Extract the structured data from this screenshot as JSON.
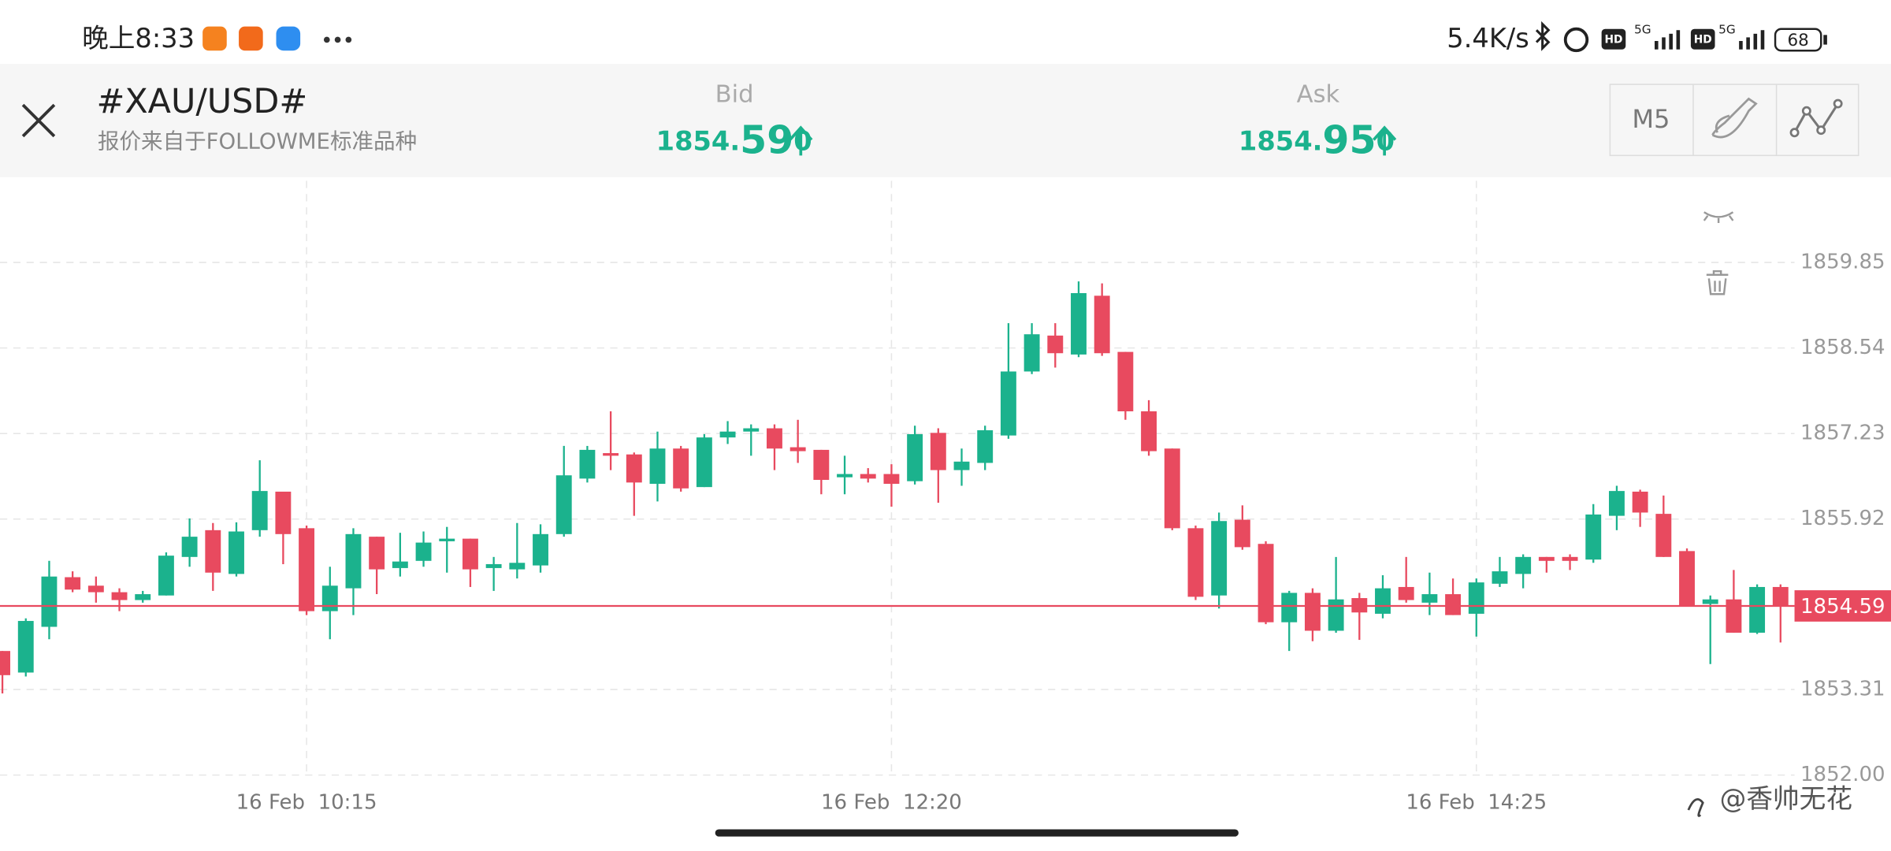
{
  "status_bar": {
    "time": "晚上8:33",
    "speed": "5.4K/s",
    "battery": "68",
    "network": [
      "5G",
      "5G"
    ],
    "hd": [
      "HD",
      "HD"
    ]
  },
  "header": {
    "symbol": "#XAU/USD#",
    "source": "报价来自于FOLLOWME标准品种",
    "bid": {
      "label": "Bid",
      "price": [
        "1854.",
        "59",
        "0"
      ]
    },
    "ask": {
      "label": "Ask",
      "price": [
        "1854.",
        "95",
        "0"
      ]
    },
    "timeframe": "M5"
  },
  "watermark": "@香帅无花",
  "chart_data": {
    "type": "candlestick",
    "up_color": "#1bb28d",
    "down_color": "#e84a5f",
    "grid": true,
    "categories": [
      null,
      null,
      null,
      null,
      null,
      null,
      null,
      null,
      null,
      null,
      null,
      null,
      null,
      "16 Feb  10:15",
      null,
      null,
      null,
      null,
      null,
      null,
      null,
      null,
      null,
      null,
      null,
      null,
      null,
      null,
      null,
      null,
      null,
      null,
      null,
      null,
      null,
      null,
      null,
      null,
      "16 Feb  12:20",
      null,
      null,
      null,
      null,
      null,
      null,
      null,
      null,
      null,
      null,
      null,
      null,
      null,
      null,
      null,
      null,
      null,
      null,
      null,
      null,
      null,
      null,
      null,
      null,
      "16 Feb  14:25",
      null,
      null,
      null,
      null,
      null,
      null,
      null,
      null,
      null,
      null,
      null,
      null,
      null
    ],
    "open": [
      1853.9,
      1853.57,
      1854.27,
      1855.03,
      1854.9,
      1854.8,
      1854.68,
      1854.75,
      1855.34,
      1855.75,
      1855.08,
      1855.75,
      1856.34,
      1855.78,
      1854.51,
      1854.86,
      1855.65,
      1855.17,
      1855.28,
      1855.58,
      1855.62,
      1855.17,
      1855.15,
      1855.21,
      1855.69,
      1856.54,
      1856.93,
      1856.91,
      1856.46,
      1857.0,
      1856.41,
      1857.17,
      1857.26,
      1857.31,
      1857.02,
      1856.98,
      1856.56,
      1856.61,
      1856.61,
      1856.5,
      1857.24,
      1856.67,
      1856.78,
      1857.2,
      1858.18,
      1858.73,
      1858.44,
      1859.34,
      1858.48,
      1857.57,
      1857.0,
      1855.78,
      1854.75,
      1855.91,
      1855.54,
      1854.34,
      1854.79,
      1854.21,
      1854.71,
      1854.47,
      1854.88,
      1854.64,
      1854.77,
      1854.47,
      1854.93,
      1855.08,
      1855.34,
      1855.34,
      1855.3,
      1855.97,
      1856.34,
      1856.0,
      1855.43,
      1854.62,
      1854.69,
      1854.18,
      1854.88
    ],
    "high": [
      1853.9,
      1854.4,
      1855.28,
      1855.12,
      1855.04,
      1854.86,
      1854.82,
      1855.41,
      1855.93,
      1855.86,
      1855.87,
      1856.82,
      1856.34,
      1855.82,
      1855.19,
      1855.78,
      1855.65,
      1855.71,
      1855.73,
      1855.8,
      1855.62,
      1855.34,
      1855.86,
      1855.84,
      1857.04,
      1857.04,
      1857.57,
      1856.94,
      1857.26,
      1857.04,
      1857.22,
      1857.42,
      1857.37,
      1857.37,
      1857.44,
      1856.98,
      1856.89,
      1856.7,
      1856.76,
      1857.35,
      1857.31,
      1857.0,
      1857.35,
      1858.92,
      1858.92,
      1858.92,
      1859.56,
      1859.53,
      1858.48,
      1857.74,
      1857.0,
      1855.82,
      1856.02,
      1856.13,
      1855.58,
      1854.82,
      1854.86,
      1855.34,
      1854.79,
      1855.06,
      1855.34,
      1855.1,
      1855.01,
      1855.01,
      1855.34,
      1855.38,
      1855.34,
      1855.38,
      1856.15,
      1856.43,
      1856.37,
      1856.28,
      1855.47,
      1854.75,
      1855.14,
      1854.92,
      1854.92
    ],
    "low": [
      1853.25,
      1853.51,
      1854.08,
      1854.8,
      1854.64,
      1854.51,
      1854.64,
      1854.75,
      1855.19,
      1854.82,
      1855.04,
      1855.65,
      1855.23,
      1854.45,
      1854.08,
      1854.45,
      1854.77,
      1855.04,
      1855.19,
      1855.1,
      1854.88,
      1854.82,
      1855.01,
      1855.1,
      1855.65,
      1856.48,
      1856.67,
      1855.97,
      1856.19,
      1856.34,
      1856.41,
      1857.07,
      1856.89,
      1856.67,
      1856.78,
      1856.3,
      1856.3,
      1856.48,
      1856.11,
      1856.45,
      1856.17,
      1856.43,
      1856.67,
      1857.15,
      1858.14,
      1858.24,
      1858.4,
      1858.42,
      1857.44,
      1856.89,
      1855.75,
      1854.68,
      1854.55,
      1855.45,
      1854.31,
      1853.9,
      1854.05,
      1854.18,
      1854.07,
      1854.4,
      1854.64,
      1854.45,
      1854.45,
      1854.12,
      1854.88,
      1854.86,
      1855.1,
      1855.14,
      1855.25,
      1855.75,
      1855.8,
      1855.34,
      1854.6,
      1853.7,
      1854.18,
      1854.16,
      1854.03
    ],
    "close": [
      1853.53,
      1854.36,
      1855.04,
      1854.84,
      1854.8,
      1854.68,
      1854.77,
      1855.36,
      1855.65,
      1855.1,
      1855.73,
      1856.35,
      1855.69,
      1854.51,
      1854.9,
      1855.69,
      1855.15,
      1855.27,
      1855.56,
      1855.62,
      1855.15,
      1855.23,
      1855.25,
      1855.69,
      1856.59,
      1856.98,
      1856.89,
      1856.48,
      1857.0,
      1856.39,
      1857.17,
      1857.26,
      1857.31,
      1857.0,
      1856.96,
      1856.52,
      1856.61,
      1856.54,
      1856.46,
      1857.22,
      1856.67,
      1856.8,
      1857.28,
      1858.18,
      1858.75,
      1858.46,
      1859.38,
      1858.46,
      1857.57,
      1856.96,
      1855.78,
      1854.73,
      1855.89,
      1855.49,
      1854.34,
      1854.79,
      1854.21,
      1854.69,
      1854.49,
      1854.86,
      1854.68,
      1854.77,
      1854.45,
      1854.95,
      1855.12,
      1855.34,
      1855.28,
      1855.28,
      1855.99,
      1856.35,
      1856.02,
      1855.34,
      1854.6,
      1854.69,
      1854.18,
      1854.88,
      1854.6
    ],
    "ylim": [
      1852.0,
      1861.1
    ],
    "yticks": [
      {
        "value": 1852,
        "label": "1852.00"
      },
      1853.31,
      1855.92,
      1857.23,
      1858.54,
      1859.85
    ],
    "price_line": {
      "value": 1854.59,
      "color": "#e84a5f"
    }
  }
}
